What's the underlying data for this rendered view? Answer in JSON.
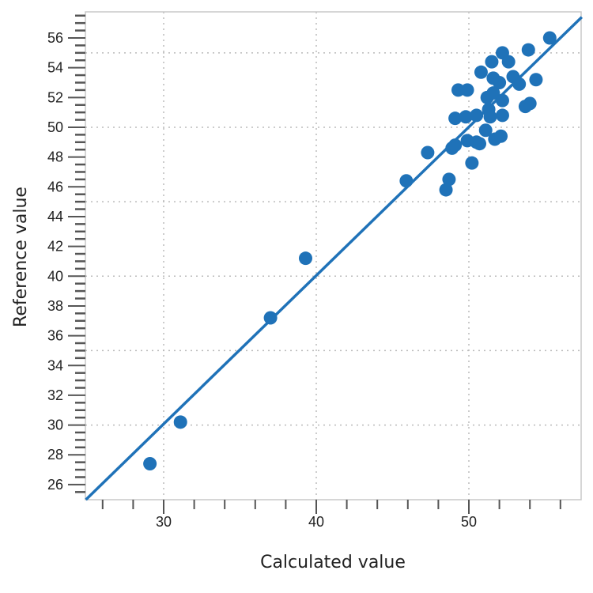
{
  "chart_data": {
    "type": "scatter",
    "title": "",
    "xlabel": "Calculated value",
    "ylabel": "Reference value",
    "xlim": [
      24.9,
      57.4
    ],
    "ylim": [
      25.0,
      57.7
    ],
    "x_ticks": [
      30,
      40,
      50
    ],
    "x_tick_labels": [
      "30",
      "40",
      "50"
    ],
    "y_ticks": [
      26,
      28,
      30,
      32,
      34,
      36,
      38,
      40,
      42,
      44,
      46,
      48,
      50,
      52,
      54,
      56
    ],
    "y_tick_labels": [
      "26",
      "28",
      "30",
      "32",
      "34",
      "36",
      "38",
      "40",
      "42",
      "44",
      "46",
      "48",
      "50",
      "52",
      "54",
      "56"
    ],
    "grid": "dotted, x every 10, y every 5",
    "legend": "none",
    "color": "#1f72b8",
    "fit_line": {
      "x": [
        24.9,
        57.4
      ],
      "y": [
        24.9,
        57.4
      ]
    },
    "points": [
      [
        29.1,
        27.4
      ],
      [
        31.1,
        30.2
      ],
      [
        37.0,
        37.2
      ],
      [
        39.3,
        41.2
      ],
      [
        45.9,
        46.4
      ],
      [
        47.3,
        48.3
      ],
      [
        48.5,
        45.8
      ],
      [
        48.7,
        46.5
      ],
      [
        48.9,
        48.6
      ],
      [
        49.1,
        48.8
      ],
      [
        49.1,
        50.6
      ],
      [
        49.3,
        52.5
      ],
      [
        49.9,
        52.5
      ],
      [
        49.8,
        50.7
      ],
      [
        49.9,
        49.1
      ],
      [
        50.2,
        47.6
      ],
      [
        50.5,
        49.0
      ],
      [
        50.7,
        48.9
      ],
      [
        50.5,
        50.8
      ],
      [
        50.8,
        53.7
      ],
      [
        51.1,
        49.8
      ],
      [
        51.2,
        52.0
      ],
      [
        51.3,
        51.2
      ],
      [
        51.4,
        50.7
      ],
      [
        51.5,
        54.4
      ],
      [
        51.6,
        52.3
      ],
      [
        51.6,
        53.3
      ],
      [
        51.7,
        49.2
      ],
      [
        52.0,
        53.0
      ],
      [
        52.1,
        49.4
      ],
      [
        52.2,
        55.0
      ],
      [
        52.2,
        51.8
      ],
      [
        52.2,
        50.8
      ],
      [
        52.6,
        54.4
      ],
      [
        52.9,
        53.4
      ],
      [
        53.3,
        52.9
      ],
      [
        53.7,
        51.4
      ],
      [
        54.0,
        51.6
      ],
      [
        53.9,
        55.2
      ],
      [
        54.4,
        53.2
      ],
      [
        55.3,
        56.0
      ]
    ]
  }
}
